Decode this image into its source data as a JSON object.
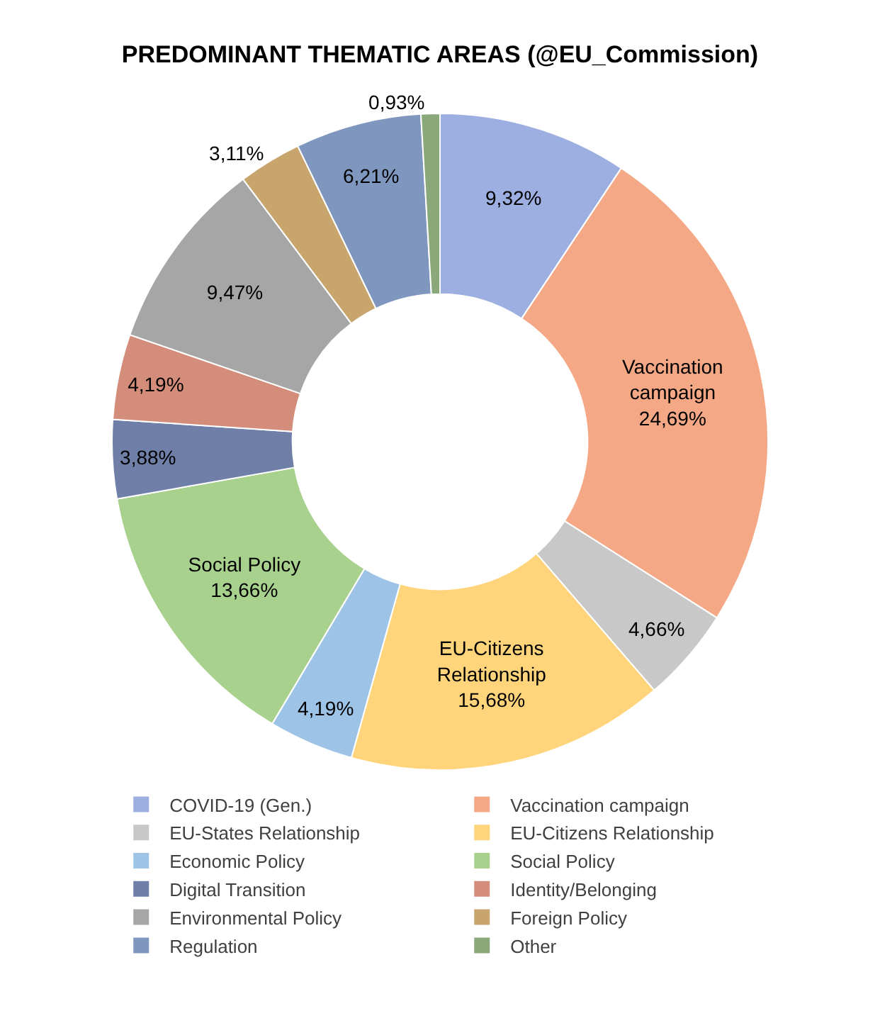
{
  "chart_data": {
    "type": "donut",
    "title": "PREDOMINANT THEMATIC AREAS (@EU_Commission)",
    "categories": [
      "COVID-19 (Gen.)",
      "Vaccination campaign",
      "EU-States Relationship",
      "EU-Citizens Relationship",
      "Economic Policy",
      "Social Policy",
      "Digital Transition",
      "Identity/Belonging",
      "Environmental Policy",
      "Foreign Policy",
      "Regulation",
      "Other"
    ],
    "values": [
      9.32,
      24.69,
      4.66,
      15.68,
      4.19,
      13.66,
      3.88,
      4.19,
      9.47,
      3.11,
      6.21,
      0.93
    ],
    "value_labels": [
      "9,32%",
      "Vaccination\ncampaign\n24,69%",
      "4,66%",
      "EU-Citizens\nRelationship\n15,68%",
      "4,19%",
      "Social Policy\n13,66%",
      "3,88%",
      "4,19%",
      "9,47%",
      "3,11%",
      "6,21%",
      "0,93%"
    ],
    "colors": [
      "#9dafe0",
      "#f4a886",
      "#c8c8c8",
      "#ffd47a",
      "#9dc3e6",
      "#a9d18e",
      "#6f7fa8",
      "#d48d7a",
      "#a6a6a6",
      "#c9a56e",
      "#7f97bf",
      "#8aa87a"
    ],
    "legend": "bottom"
  }
}
